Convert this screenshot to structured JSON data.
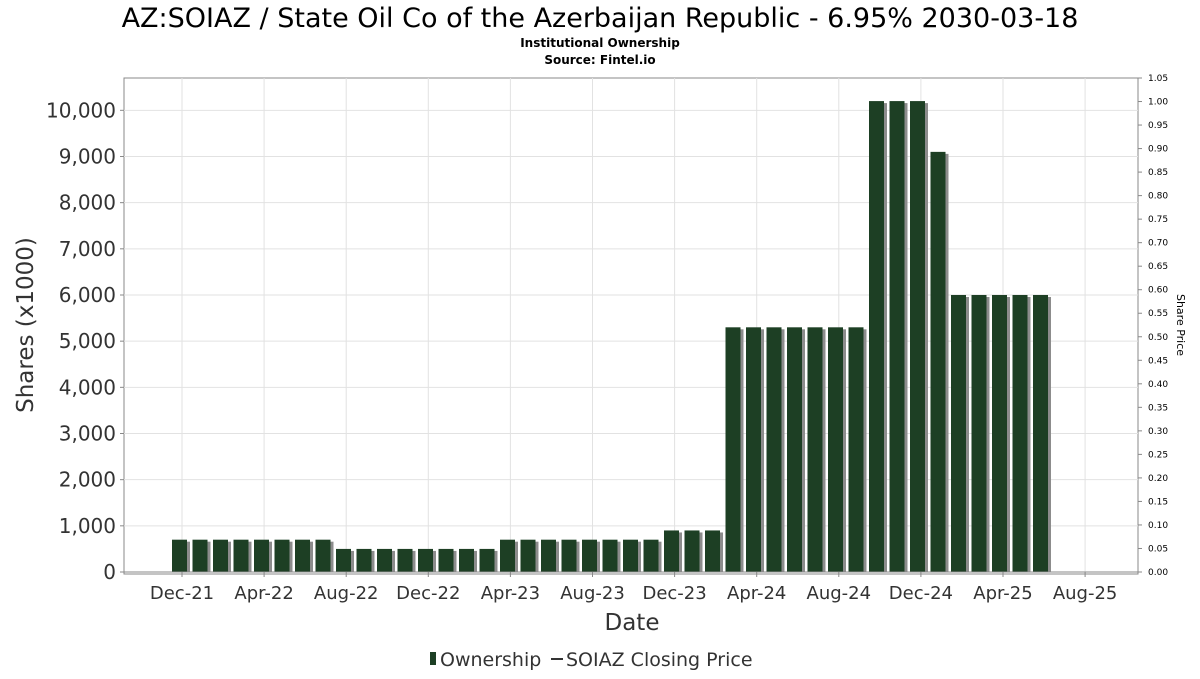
{
  "chart_data": {
    "type": "bar",
    "title": "AZ:SOIAZ / State Oil Co of the Azerbaijan Republic - 6.95% 2030-03-18",
    "subtitle": "Institutional Ownership",
    "source": "Source: Fintel.io",
    "xlabel": "Date",
    "ylabel": "Shares (x1000)",
    "ylabel_right": "Share Price",
    "ylim": [
      0,
      10700
    ],
    "ylim_right": [
      0,
      1.05
    ],
    "y_ticks": [
      "0",
      "1,000",
      "2,000",
      "3,000",
      "4,000",
      "5,000",
      "6,000",
      "7,000",
      "8,000",
      "9,000",
      "10,000"
    ],
    "y_ticks_right": [
      "0.00",
      "0.05",
      "0.10",
      "0.15",
      "0.20",
      "0.25",
      "0.30",
      "0.35",
      "0.40",
      "0.45",
      "0.50",
      "0.55",
      "0.60",
      "0.65",
      "0.70",
      "0.75",
      "0.80",
      "0.85",
      "0.90",
      "0.95",
      "1.00",
      "1.05"
    ],
    "x_ticks": [
      "Dec-21",
      "Apr-22",
      "Aug-22",
      "Dec-22",
      "Apr-23",
      "Aug-23",
      "Dec-23",
      "Apr-24",
      "Aug-24",
      "Dec-24",
      "Apr-25",
      "Aug-25"
    ],
    "grid": true,
    "series": [
      {
        "name": "Ownership",
        "color": "#1d3f24",
        "shadow_color": "#8c8c8c",
        "values": [
          700,
          700,
          700,
          700,
          700,
          700,
          700,
          700,
          500,
          500,
          500,
          500,
          500,
          500,
          500,
          500,
          700,
          700,
          700,
          700,
          700,
          700,
          700,
          700,
          900,
          900,
          900,
          5300,
          5300,
          5300,
          5300,
          5300,
          5300,
          5300,
          10200,
          10200,
          10200,
          9100,
          6000,
          6000,
          6000,
          6000,
          6000
        ]
      },
      {
        "name": "SOIAZ Closing Price",
        "color": "#333333",
        "values": []
      }
    ],
    "legend": {
      "position": "bottom"
    }
  }
}
